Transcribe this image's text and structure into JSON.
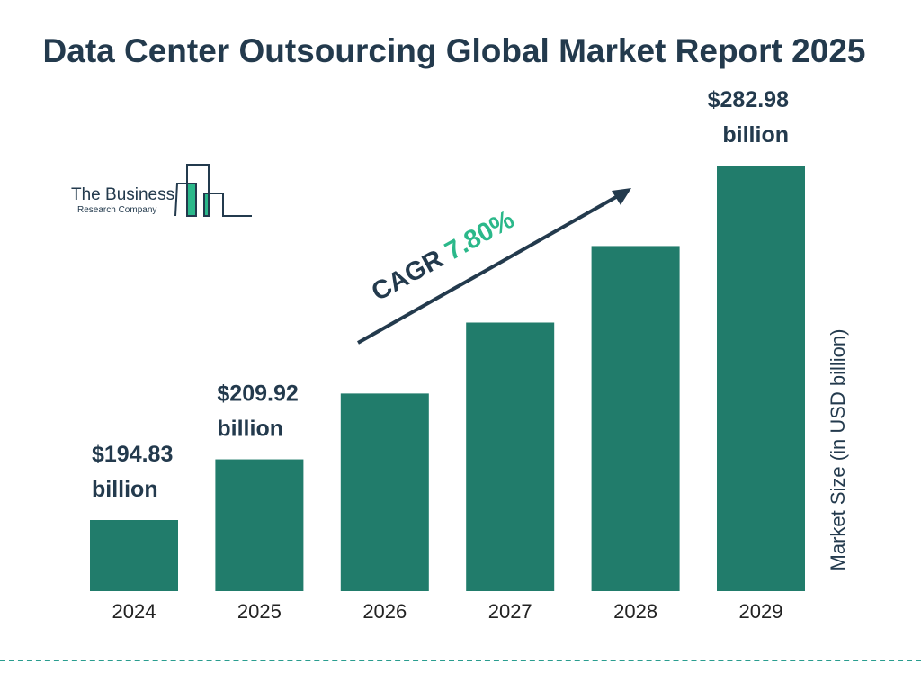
{
  "title": "Data Center Outsourcing Global Market Report 2025",
  "logo": {
    "line1": "The Business",
    "line2": "Research Company"
  },
  "chart_data": {
    "type": "bar",
    "categories": [
      "2024",
      "2025",
      "2026",
      "2027",
      "2028",
      "2029"
    ],
    "values": [
      194.83,
      209.92,
      226.29,
      243.94,
      262.97,
      282.98
    ],
    "data_labels": [
      {
        "index": 0,
        "value": "$194.83",
        "unit": "billion"
      },
      {
        "index": 1,
        "value": "$209.92",
        "unit": "billion"
      },
      {
        "index": 5,
        "value": "$282.98",
        "unit": "billion"
      }
    ],
    "ylabel": "Market Size (in USD billion)",
    "annotation": {
      "label": "CAGR",
      "value": "7.80%"
    },
    "bar_color": "#217c6b",
    "text_color": "#233a4d",
    "accent_color": "#2bb88a",
    "grid": false
  }
}
